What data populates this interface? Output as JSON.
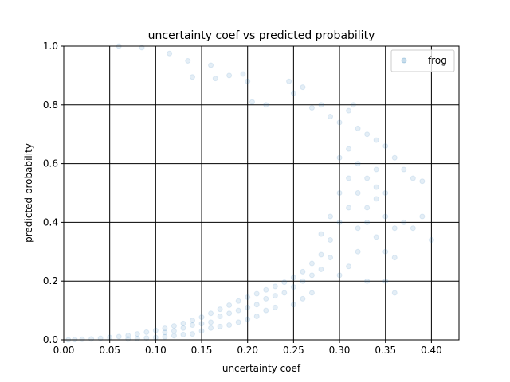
{
  "chart_data": {
    "type": "scatter",
    "title": "uncertainty coef vs predicted probability",
    "xlabel": "uncertainty coef",
    "ylabel": "predicted probability",
    "xlim": [
      0.0,
      0.43
    ],
    "ylim": [
      0.0,
      1.0
    ],
    "xticks": [
      0.0,
      0.05,
      0.1,
      0.15,
      0.2,
      0.25,
      0.3,
      0.35,
      0.4
    ],
    "xtick_labels": [
      "0.00",
      "0.05",
      "0.10",
      "0.15",
      "0.20",
      "0.25",
      "0.30",
      "0.35",
      "0.40"
    ],
    "yticks": [
      0.0,
      0.2,
      0.4,
      0.6,
      0.8,
      1.0
    ],
    "ytick_labels": [
      "0.0",
      "0.2",
      "0.4",
      "0.6",
      "0.8",
      "1.0"
    ],
    "grid": true,
    "legend_position": "top-right",
    "colors": {
      "point": "#1f77b4",
      "grid": "#000000"
    },
    "marker_alpha": 0.12,
    "series": [
      {
        "name": "frog",
        "points": [
          [
            0.005,
            0.0
          ],
          [
            0.012,
            0.001
          ],
          [
            0.02,
            0.002
          ],
          [
            0.03,
            0.003
          ],
          [
            0.04,
            0.005
          ],
          [
            0.05,
            0.008
          ],
          [
            0.06,
            0.011
          ],
          [
            0.07,
            0.015
          ],
          [
            0.08,
            0.02
          ],
          [
            0.09,
            0.026
          ],
          [
            0.1,
            0.032
          ],
          [
            0.11,
            0.039
          ],
          [
            0.12,
            0.047
          ],
          [
            0.13,
            0.056
          ],
          [
            0.14,
            0.066
          ],
          [
            0.15,
            0.077
          ],
          [
            0.16,
            0.09
          ],
          [
            0.17,
            0.104
          ],
          [
            0.18,
            0.118
          ],
          [
            0.19,
            0.132
          ],
          [
            0.2,
            0.145
          ],
          [
            0.21,
            0.157
          ],
          [
            0.22,
            0.17
          ],
          [
            0.23,
            0.182
          ],
          [
            0.24,
            0.196
          ],
          [
            0.25,
            0.212
          ],
          [
            0.26,
            0.232
          ],
          [
            0.27,
            0.26
          ],
          [
            0.28,
            0.29
          ],
          [
            0.29,
            0.34
          ],
          [
            0.3,
            0.4
          ],
          [
            0.31,
            0.45
          ],
          [
            0.32,
            0.5
          ],
          [
            0.33,
            0.55
          ],
          [
            0.34,
            0.48
          ],
          [
            0.35,
            0.42
          ],
          [
            0.36,
            0.38
          ],
          [
            0.37,
            0.4
          ],
          [
            0.38,
            0.38
          ],
          [
            0.39,
            0.42
          ],
          [
            0.4,
            0.34
          ],
          [
            0.06,
            1.0
          ],
          [
            0.085,
            0.995
          ],
          [
            0.115,
            0.975
          ],
          [
            0.135,
            0.95
          ],
          [
            0.14,
            0.895
          ],
          [
            0.16,
            0.935
          ],
          [
            0.165,
            0.89
          ],
          [
            0.18,
            0.9
          ],
          [
            0.195,
            0.905
          ],
          [
            0.2,
            0.88
          ],
          [
            0.205,
            0.81
          ],
          [
            0.22,
            0.8
          ],
          [
            0.245,
            0.88
          ],
          [
            0.25,
            0.84
          ],
          [
            0.26,
            0.86
          ],
          [
            0.27,
            0.79
          ],
          [
            0.28,
            0.8
          ],
          [
            0.29,
            0.76
          ],
          [
            0.3,
            0.74
          ],
          [
            0.31,
            0.78
          ],
          [
            0.315,
            0.8
          ],
          [
            0.32,
            0.72
          ],
          [
            0.33,
            0.7
          ],
          [
            0.34,
            0.68
          ],
          [
            0.35,
            0.66
          ],
          [
            0.36,
            0.62
          ],
          [
            0.37,
            0.58
          ],
          [
            0.38,
            0.55
          ],
          [
            0.39,
            0.54
          ],
          [
            0.3,
            0.62
          ],
          [
            0.31,
            0.65
          ],
          [
            0.32,
            0.6
          ],
          [
            0.34,
            0.58
          ],
          [
            0.33,
            0.4
          ],
          [
            0.34,
            0.35
          ],
          [
            0.35,
            0.3
          ],
          [
            0.36,
            0.28
          ],
          [
            0.32,
            0.3
          ],
          [
            0.31,
            0.25
          ],
          [
            0.3,
            0.22
          ],
          [
            0.33,
            0.2
          ],
          [
            0.35,
            0.2
          ],
          [
            0.36,
            0.16
          ],
          [
            0.27,
            0.16
          ],
          [
            0.26,
            0.14
          ],
          [
            0.25,
            0.12
          ],
          [
            0.23,
            0.11
          ],
          [
            0.22,
            0.1
          ],
          [
            0.21,
            0.08
          ],
          [
            0.2,
            0.07
          ],
          [
            0.19,
            0.06
          ],
          [
            0.18,
            0.05
          ],
          [
            0.17,
            0.045
          ],
          [
            0.16,
            0.04
          ],
          [
            0.15,
            0.03
          ],
          [
            0.14,
            0.02
          ],
          [
            0.13,
            0.018
          ],
          [
            0.12,
            0.014
          ],
          [
            0.11,
            0.01
          ],
          [
            0.1,
            0.008
          ],
          [
            0.09,
            0.006
          ],
          [
            0.08,
            0.004
          ],
          [
            0.07,
            0.003
          ],
          [
            0.28,
            0.36
          ],
          [
            0.29,
            0.42
          ],
          [
            0.3,
            0.5
          ],
          [
            0.31,
            0.55
          ],
          [
            0.32,
            0.38
          ],
          [
            0.33,
            0.45
          ],
          [
            0.34,
            0.52
          ],
          [
            0.35,
            0.5
          ],
          [
            0.29,
            0.28
          ],
          [
            0.28,
            0.24
          ],
          [
            0.27,
            0.22
          ],
          [
            0.26,
            0.2
          ],
          [
            0.25,
            0.18
          ],
          [
            0.24,
            0.16
          ],
          [
            0.23,
            0.15
          ],
          [
            0.22,
            0.14
          ],
          [
            0.21,
            0.12
          ],
          [
            0.2,
            0.11
          ],
          [
            0.19,
            0.1
          ],
          [
            0.18,
            0.09
          ],
          [
            0.17,
            0.08
          ],
          [
            0.16,
            0.06
          ],
          [
            0.15,
            0.055
          ],
          [
            0.14,
            0.05
          ],
          [
            0.13,
            0.04
          ],
          [
            0.12,
            0.03
          ],
          [
            0.11,
            0.025
          ]
        ]
      }
    ]
  }
}
